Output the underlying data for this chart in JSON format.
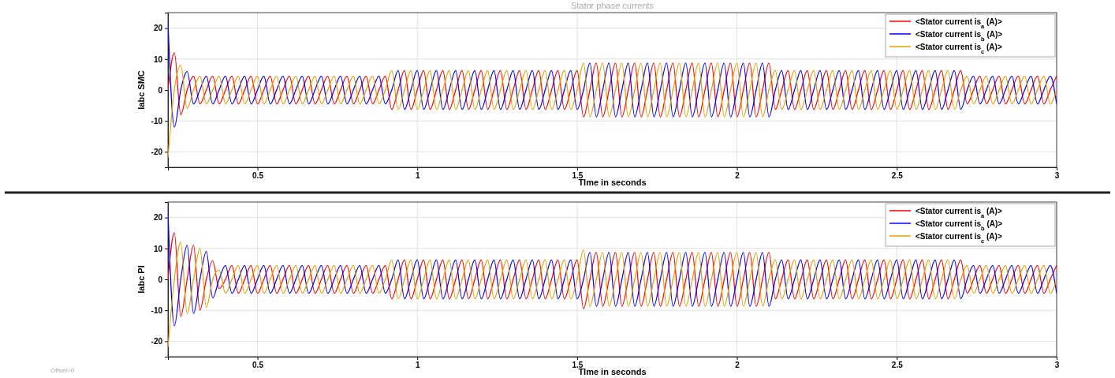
{
  "chart_data": [
    {
      "type": "line",
      "title": "Stator phase currents",
      "xlabel": "TIme in seconds",
      "ylabel": "Iabc SMC",
      "xlim": [
        0.22,
        3
      ],
      "ylim": [
        -25,
        25
      ],
      "xticks": [
        0.5,
        1,
        1.5,
        2,
        2.5,
        3
      ],
      "yticks": [
        -20,
        -10,
        0,
        10,
        20
      ],
      "grid": true,
      "legend": "top right",
      "x": [
        0.22,
        0.24,
        0.26,
        0.28,
        0.3,
        0.32,
        0.34,
        0.36,
        0.38,
        0.4,
        0.42,
        0.44,
        0.46,
        0.48,
        0.5,
        0.52,
        0.54,
        0.56,
        0.58,
        0.6,
        0.62,
        0.64,
        0.66,
        0.68,
        0.7,
        0.72,
        0.74,
        0.76,
        0.78,
        0.8,
        0.82,
        0.84,
        0.86,
        0.88,
        0.9,
        0.92,
        0.94,
        0.96,
        0.98,
        1,
        1.02,
        1.04,
        1.06,
        1.08,
        1.1,
        1.12,
        1.14,
        1.16,
        1.18,
        1.2,
        1.22,
        1.24,
        1.26,
        1.28,
        1.3,
        1.32,
        1.34,
        1.36,
        1.38,
        1.4,
        1.42,
        1.44,
        1.46,
        1.48,
        1.5,
        1.52,
        1.54,
        1.56,
        1.58,
        1.6,
        1.62,
        1.64,
        1.66,
        1.68,
        1.7,
        1.72,
        1.74,
        1.76,
        1.78,
        1.8,
        1.82,
        1.84,
        1.86,
        1.88,
        1.9,
        1.92,
        1.94,
        1.96,
        1.98,
        2,
        2.02,
        2.04,
        2.06,
        2.08,
        2.1,
        2.12,
        2.14,
        2.16,
        2.18,
        2.2,
        2.22,
        2.24,
        2.26,
        2.28,
        2.3,
        2.32,
        2.34,
        2.36,
        2.38,
        2.4,
        2.42,
        2.44,
        2.46,
        2.48,
        2.5,
        2.52,
        2.54,
        2.56,
        2.58,
        2.6,
        2.62,
        2.64,
        2.66,
        2.68,
        2.7,
        2.72,
        2.74,
        2.76,
        2.78,
        2.8,
        2.82,
        2.84,
        2.86,
        2.88,
        2.9,
        2.92,
        2.94,
        2.96,
        2.98,
        3
      ],
      "series": [
        {
          "name": "<Stator current is$_{a}$ (A)>",
          "color": "#ff0000",
          "values": [
            0,
            12,
            -8,
            0,
            4.5,
            -4.5,
            0,
            4.5,
            -4.5,
            0,
            4.5,
            -4.5,
            0,
            4.5,
            -4.5,
            0,
            4.5,
            -4.5,
            0,
            4.5,
            -4.5,
            0,
            4.5,
            -4.5,
            0,
            4.5,
            -4.5,
            0,
            4.5,
            -4.5,
            0,
            4.5,
            -4.5,
            0,
            4.5,
            -6.3,
            0,
            6.3,
            -6.3,
            0,
            6.3,
            -6.3,
            0,
            6.3,
            -6.3,
            0,
            6.3,
            -6.3,
            0,
            6.3,
            -6.3,
            0,
            6.3,
            -6.3,
            0,
            6.3,
            -6.3,
            0,
            6.3,
            -6.3,
            0,
            6.3,
            -6.3,
            0,
            6.3,
            -8.7,
            0,
            8.7,
            -8.7,
            0,
            8.7,
            -8.7,
            0,
            8.7,
            -8.7,
            0,
            8.7,
            -8.7,
            0,
            8.7,
            -8.7,
            0,
            8.7,
            -8.7,
            0,
            8.7,
            -8.7,
            0,
            8.7,
            -8.7,
            0,
            8.7,
            -8.7,
            0,
            8.7,
            -6.3,
            0,
            6.3,
            -6.3,
            0,
            6.3,
            -6.3,
            0,
            6.3,
            -6.3,
            0,
            6.3,
            -6.3,
            0,
            6.3,
            -6.3,
            0,
            6.3,
            -6.3,
            0,
            6.3,
            -6.3,
            0,
            6.3,
            -6.3,
            0,
            6.3,
            -6.3,
            0,
            6.3,
            -4.5,
            0,
            4.5,
            -4.5,
            0,
            4.5,
            -4.5,
            0,
            4.5,
            -4.5,
            0,
            4.5,
            -4.5,
            0,
            4.5
          ]
        },
        {
          "name": "<Stator current is$_{b}$ (A)>",
          "color": "#0000ff",
          "values": [
            22,
            -12,
            0,
            6,
            -4.5,
            0,
            4.5,
            -4.5,
            0,
            4.5,
            -4.5,
            0,
            4.5,
            -4.5,
            0,
            4.5,
            -4.5,
            0,
            4.5,
            -4.5,
            0,
            4.5,
            -4.5,
            0,
            4.5,
            -4.5,
            0,
            4.5,
            -4.5,
            0,
            4.5,
            -4.5,
            0,
            4.5,
            -4.5,
            0,
            6.3,
            -6.3,
            0,
            6.3,
            -6.3,
            0,
            6.3,
            -6.3,
            0,
            6.3,
            -6.3,
            0,
            6.3,
            -6.3,
            0,
            6.3,
            -6.3,
            0,
            6.3,
            -6.3,
            0,
            6.3,
            -6.3,
            0,
            6.3,
            -6.3,
            0,
            6.3,
            -6.3,
            0,
            8.7,
            -8.7,
            0,
            8.7,
            -8.7,
            0,
            8.7,
            -8.7,
            0,
            8.7,
            -8.7,
            0,
            8.7,
            -8.7,
            0,
            8.7,
            -8.7,
            0,
            8.7,
            -8.7,
            0,
            8.7,
            -8.7,
            0,
            8.7,
            -8.7,
            0,
            8.7,
            -8.7,
            0,
            6.3,
            -6.3,
            0,
            6.3,
            -6.3,
            0,
            6.3,
            -6.3,
            0,
            6.3,
            -6.3,
            0,
            6.3,
            -6.3,
            0,
            6.3,
            -6.3,
            0,
            6.3,
            -6.3,
            0,
            6.3,
            -6.3,
            0,
            6.3,
            -6.3,
            0,
            6.3,
            -6.3,
            0,
            4.5,
            -4.5,
            0,
            4.5,
            -4.5,
            0,
            4.5,
            -4.5,
            0,
            4.5,
            -4.5,
            0,
            4.5,
            -4.5
          ]
        },
        {
          "name": "<Stator current is$_{c}$ (A)>",
          "color": "#e8a000",
          "values": [
            -22,
            0,
            8,
            -6,
            0,
            4.5,
            -4.5,
            0,
            4.5,
            -4.5,
            0,
            4.5,
            -4.5,
            0,
            4.5,
            -4.5,
            0,
            4.5,
            -4.5,
            0,
            4.5,
            -4.5,
            0,
            4.5,
            -4.5,
            0,
            4.5,
            -4.5,
            0,
            4.5,
            -4.5,
            0,
            4.5,
            -4.5,
            0,
            6.3,
            -6.3,
            0,
            6.3,
            -6.3,
            0,
            6.3,
            -6.3,
            0,
            6.3,
            -6.3,
            0,
            6.3,
            -6.3,
            0,
            6.3,
            -6.3,
            0,
            6.3,
            -6.3,
            0,
            6.3,
            -6.3,
            0,
            6.3,
            -6.3,
            0,
            6.3,
            -6.3,
            0,
            8.7,
            -8.7,
            0,
            8.7,
            -8.7,
            0,
            8.7,
            -8.7,
            0,
            8.7,
            -8.7,
            0,
            8.7,
            -8.7,
            0,
            8.7,
            -8.7,
            0,
            8.7,
            -8.7,
            0,
            8.7,
            -8.7,
            0,
            8.7,
            -8.7,
            0,
            8.7,
            -8.7,
            0,
            6.3,
            -6.3,
            0,
            6.3,
            -6.3,
            0,
            6.3,
            -6.3,
            0,
            6.3,
            -6.3,
            0,
            6.3,
            -6.3,
            0,
            6.3,
            -6.3,
            0,
            6.3,
            -6.3,
            0,
            6.3,
            -6.3,
            0,
            6.3,
            -6.3,
            0,
            6.3,
            -6.3,
            0,
            4.5,
            -4.5,
            0,
            4.5,
            -4.5,
            0,
            4.5,
            -4.5,
            0,
            4.5,
            -4.5,
            0,
            4.5,
            -4.5,
            0
          ]
        }
      ]
    },
    {
      "type": "line",
      "xlabel": "TIme in seconds",
      "ylabel": "Iabc PI",
      "xlim": [
        0.22,
        3
      ],
      "ylim": [
        -25,
        25
      ],
      "xticks": [
        0.5,
        1,
        1.5,
        2,
        2.5,
        3
      ],
      "yticks": [
        -20,
        -10,
        0,
        10,
        20
      ],
      "grid": true,
      "legend": "top right",
      "annotations": [
        "Offset=0"
      ],
      "x": [
        0.22,
        0.24,
        0.26,
        0.28,
        0.3,
        0.32,
        0.34,
        0.36,
        0.38,
        0.4,
        0.42,
        0.44,
        0.46,
        0.48,
        0.5,
        0.52,
        0.54,
        0.56,
        0.58,
        0.6,
        0.62,
        0.64,
        0.66,
        0.68,
        0.7,
        0.72,
        0.74,
        0.76,
        0.78,
        0.8,
        0.82,
        0.84,
        0.86,
        0.88,
        0.9,
        0.92,
        0.94,
        0.96,
        0.98,
        1,
        1.02,
        1.04,
        1.06,
        1.08,
        1.1,
        1.12,
        1.14,
        1.16,
        1.18,
        1.2,
        1.22,
        1.24,
        1.26,
        1.28,
        1.3,
        1.32,
        1.34,
        1.36,
        1.38,
        1.4,
        1.42,
        1.44,
        1.46,
        1.48,
        1.5,
        1.52,
        1.54,
        1.56,
        1.58,
        1.6,
        1.62,
        1.64,
        1.66,
        1.68,
        1.7,
        1.72,
        1.74,
        1.76,
        1.78,
        1.8,
        1.82,
        1.84,
        1.86,
        1.88,
        1.9,
        1.92,
        1.94,
        1.96,
        1.98,
        2,
        2.02,
        2.04,
        2.06,
        2.08,
        2.1,
        2.12,
        2.14,
        2.16,
        2.18,
        2.2,
        2.22,
        2.24,
        2.26,
        2.28,
        2.3,
        2.32,
        2.34,
        2.36,
        2.38,
        2.4,
        2.42,
        2.44,
        2.46,
        2.48,
        2.5,
        2.52,
        2.54,
        2.56,
        2.58,
        2.6,
        2.62,
        2.64,
        2.66,
        2.68,
        2.7,
        2.72,
        2.74,
        2.76,
        2.78,
        2.8,
        2.82,
        2.84,
        2.86,
        2.88,
        2.9,
        2.92,
        2.94,
        2.96,
        2.98,
        3
      ],
      "series": [
        {
          "name": "<Stator current is$_{a}$ (A)>",
          "color": "#ff0000",
          "values": [
            0,
            15,
            -12,
            0,
            11,
            -10,
            0,
            6,
            -3,
            0,
            4.5,
            -4.5,
            0,
            4.5,
            -4.5,
            0,
            4.5,
            -4.5,
            0,
            4.5,
            -4.5,
            0,
            4.5,
            -4.5,
            0,
            4.5,
            -4.5,
            0,
            4.5,
            -4.5,
            0,
            4.5,
            -4.5,
            0,
            4.5,
            -6.3,
            0,
            6.3,
            -6.3,
            0,
            6.3,
            -6.3,
            0,
            6.3,
            -6.3,
            0,
            6.3,
            -6.3,
            0,
            6.3,
            -6.3,
            0,
            6.3,
            -6.3,
            0,
            6.3,
            -6.3,
            0,
            6.3,
            -6.3,
            0,
            6.3,
            -6.3,
            0,
            6.3,
            -9.5,
            0,
            8.7,
            -8.7,
            0,
            8.7,
            -8.7,
            0,
            8.7,
            -8.7,
            0,
            8.7,
            -8.7,
            0,
            8.7,
            -8.7,
            0,
            8.7,
            -8.7,
            0,
            8.7,
            -8.7,
            0,
            8.7,
            -8.7,
            0,
            8.7,
            -8.7,
            0,
            8.7,
            -6.3,
            0,
            6.3,
            -6.3,
            0,
            6.3,
            -6.3,
            0,
            6.3,
            -6.3,
            0,
            6.3,
            -6.3,
            0,
            6.3,
            -6.3,
            0,
            6.3,
            -6.3,
            0,
            6.3,
            -6.3,
            0,
            6.3,
            -6.3,
            0,
            6.3,
            -6.3,
            0,
            6.3,
            -4.5,
            0,
            4.5,
            -4.5,
            0,
            4.5,
            -4.5,
            0,
            4.5,
            -4.5,
            0,
            4.5,
            -4.5,
            0,
            4.5
          ]
        },
        {
          "name": "<Stator current is$_{b}$ (A)>",
          "color": "#0000ff",
          "values": [
            22,
            -15,
            0,
            11,
            -11,
            0,
            9,
            -6,
            0,
            4.5,
            -4.5,
            0,
            4.5,
            -4.5,
            0,
            4.5,
            -4.5,
            0,
            4.5,
            -4.5,
            0,
            4.5,
            -4.5,
            0,
            4.5,
            -4.5,
            0,
            4.5,
            -4.5,
            0,
            4.5,
            -4.5,
            0,
            4.5,
            -4.5,
            0,
            6.3,
            -6.3,
            0,
            6.3,
            -6.3,
            0,
            6.3,
            -6.3,
            0,
            6.3,
            -6.3,
            0,
            6.3,
            -6.3,
            0,
            6.3,
            -6.3,
            0,
            6.3,
            -6.3,
            0,
            6.3,
            -6.3,
            0,
            6.3,
            -6.3,
            0,
            6.3,
            -6.3,
            0,
            8.7,
            -8.7,
            0,
            8.7,
            -8.7,
            0,
            8.7,
            -8.7,
            0,
            8.7,
            -8.7,
            0,
            8.7,
            -8.7,
            0,
            8.7,
            -8.7,
            0,
            8.7,
            -8.7,
            0,
            8.7,
            -8.7,
            0,
            8.7,
            -8.7,
            0,
            8.7,
            -8.7,
            0,
            6.3,
            -6.3,
            0,
            6.3,
            -6.3,
            0,
            6.3,
            -6.3,
            0,
            6.3,
            -6.3,
            0,
            6.3,
            -6.3,
            0,
            6.3,
            -6.3,
            0,
            6.3,
            -6.3,
            0,
            6.3,
            -6.3,
            0,
            6.3,
            -6.3,
            0,
            6.3,
            -6.3,
            0,
            4.5,
            -4.5,
            0,
            4.5,
            -4.5,
            0,
            4.5,
            -4.5,
            0,
            4.5,
            -4.5,
            0,
            4.5,
            -4.5
          ]
        },
        {
          "name": "<Stator current is$_{c}$ (A)>",
          "color": "#e8a000",
          "values": [
            -22,
            0,
            12,
            -11,
            0,
            10,
            -9,
            0,
            3,
            -4.5,
            0,
            4.5,
            -4.5,
            0,
            4.5,
            -4.5,
            0,
            4.5,
            -4.5,
            0,
            4.5,
            -4.5,
            0,
            4.5,
            -4.5,
            0,
            4.5,
            -4.5,
            0,
            4.5,
            -4.5,
            0,
            4.5,
            -4.5,
            0,
            6.3,
            -6.3,
            0,
            6.3,
            -6.3,
            0,
            6.3,
            -6.3,
            0,
            6.3,
            -6.3,
            0,
            6.3,
            -6.3,
            0,
            6.3,
            -6.3,
            0,
            6.3,
            -6.3,
            0,
            6.3,
            -6.3,
            0,
            6.3,
            -6.3,
            0,
            6.3,
            -6.3,
            0,
            9.5,
            -8.7,
            0,
            8.7,
            -8.7,
            0,
            8.7,
            -8.7,
            0,
            8.7,
            -8.7,
            0,
            8.7,
            -8.7,
            0,
            8.7,
            -8.7,
            0,
            8.7,
            -8.7,
            0,
            8.7,
            -8.7,
            0,
            8.7,
            -8.7,
            0,
            8.7,
            -8.7,
            0,
            6.3,
            -6.3,
            0,
            6.3,
            -6.3,
            0,
            6.3,
            -6.3,
            0,
            6.3,
            -6.3,
            0,
            6.3,
            -6.3,
            0,
            6.3,
            -6.3,
            0,
            6.3,
            -6.3,
            0,
            6.3,
            -6.3,
            0,
            6.3,
            -6.3,
            0,
            6.3,
            -6.3,
            0,
            4.5,
            -4.5,
            0,
            4.5,
            -4.5,
            0,
            4.5,
            -4.5,
            0,
            4.5,
            -4.5,
            0,
            4.5,
            -4.5,
            0
          ]
        }
      ]
    }
  ]
}
